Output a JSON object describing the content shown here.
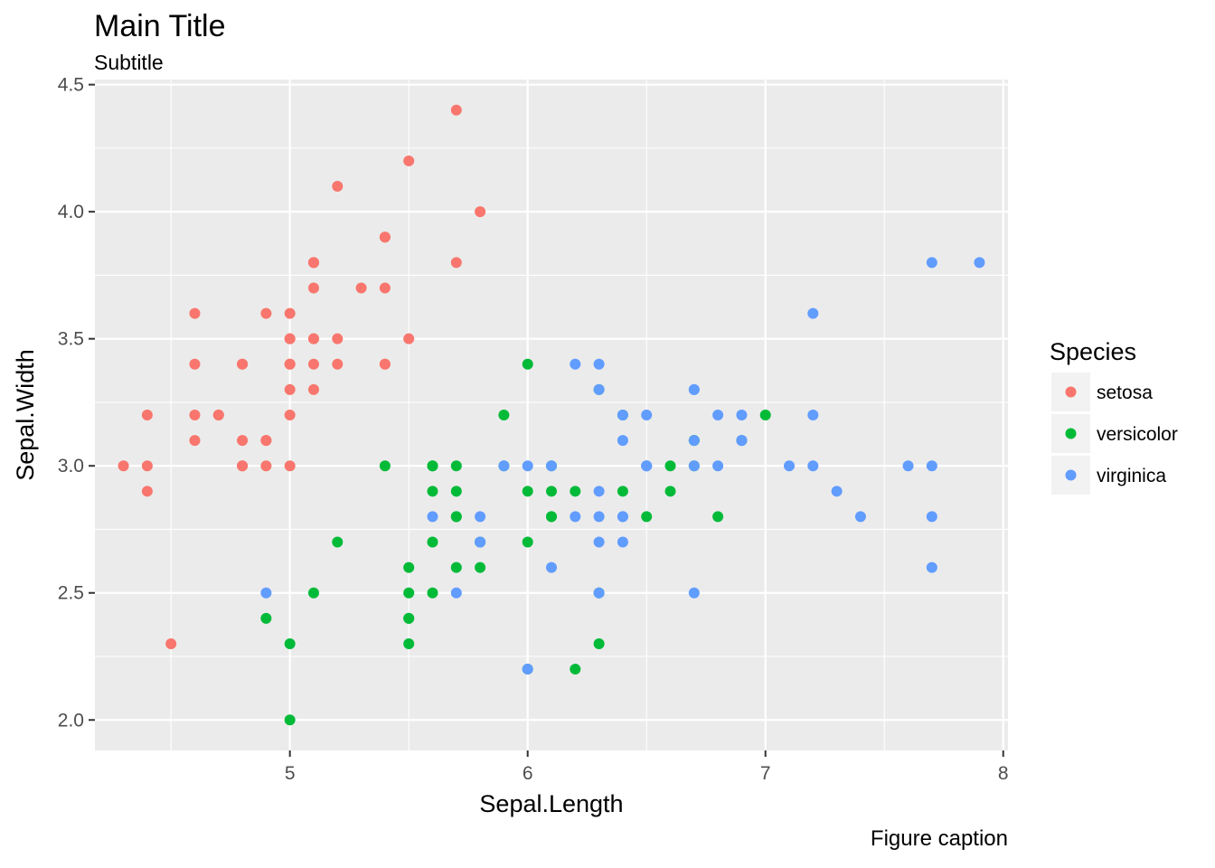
{
  "chart_data": {
    "type": "scatter",
    "title": "Main Title",
    "subtitle": "Subtitle",
    "caption": "Figure caption",
    "xlabel": "Sepal.Length",
    "ylabel": "Sepal.Width",
    "xlim": [
      4.18,
      8.02
    ],
    "ylim": [
      1.88,
      4.52
    ],
    "x_ticks": [
      5,
      6,
      7,
      8
    ],
    "y_ticks": [
      2.0,
      2.5,
      3.0,
      3.5,
      4.0,
      4.5
    ],
    "x_tick_labels": [
      "5",
      "6",
      "7",
      "8"
    ],
    "y_tick_labels": [
      "2.0",
      "2.5",
      "3.0",
      "3.5",
      "4.0",
      "4.5"
    ],
    "grid": true,
    "legend": {
      "title": "Species",
      "placement": "right"
    },
    "colors": {
      "panel": "#ebebeb",
      "grid": "#ffffff"
    },
    "series": [
      {
        "name": "setosa",
        "color": "#f8766d",
        "points": [
          [
            5.1,
            3.5
          ],
          [
            4.9,
            3.0
          ],
          [
            4.7,
            3.2
          ],
          [
            4.6,
            3.1
          ],
          [
            5.0,
            3.6
          ],
          [
            5.4,
            3.9
          ],
          [
            4.6,
            3.4
          ],
          [
            5.0,
            3.4
          ],
          [
            4.4,
            2.9
          ],
          [
            4.9,
            3.1
          ],
          [
            5.4,
            3.7
          ],
          [
            4.8,
            3.4
          ],
          [
            4.8,
            3.0
          ],
          [
            4.3,
            3.0
          ],
          [
            5.8,
            4.0
          ],
          [
            5.7,
            4.4
          ],
          [
            5.4,
            3.9
          ],
          [
            5.1,
            3.5
          ],
          [
            5.7,
            3.8
          ],
          [
            5.1,
            3.8
          ],
          [
            5.4,
            3.4
          ],
          [
            5.1,
            3.7
          ],
          [
            4.6,
            3.6
          ],
          [
            5.1,
            3.3
          ],
          [
            4.8,
            3.4
          ],
          [
            5.0,
            3.0
          ],
          [
            5.0,
            3.4
          ],
          [
            5.2,
            3.5
          ],
          [
            5.2,
            3.4
          ],
          [
            4.7,
            3.2
          ],
          [
            4.8,
            3.1
          ],
          [
            5.4,
            3.4
          ],
          [
            5.2,
            4.1
          ],
          [
            5.5,
            4.2
          ],
          [
            4.9,
            3.1
          ],
          [
            5.0,
            3.2
          ],
          [
            5.5,
            3.5
          ],
          [
            4.9,
            3.6
          ],
          [
            4.4,
            3.0
          ],
          [
            5.1,
            3.4
          ],
          [
            5.0,
            3.5
          ],
          [
            4.5,
            2.3
          ],
          [
            4.4,
            3.2
          ],
          [
            5.0,
            3.5
          ],
          [
            5.1,
            3.8
          ],
          [
            4.8,
            3.0
          ],
          [
            5.1,
            3.8
          ],
          [
            4.6,
            3.2
          ],
          [
            5.3,
            3.7
          ],
          [
            5.0,
            3.3
          ]
        ]
      },
      {
        "name": "versicolor",
        "color": "#00ba38",
        "points": [
          [
            7.0,
            3.2
          ],
          [
            6.4,
            3.2
          ],
          [
            6.9,
            3.1
          ],
          [
            5.5,
            2.3
          ],
          [
            6.5,
            2.8
          ],
          [
            5.7,
            2.8
          ],
          [
            6.3,
            3.3
          ],
          [
            4.9,
            2.4
          ],
          [
            6.6,
            2.9
          ],
          [
            5.2,
            2.7
          ],
          [
            5.0,
            2.0
          ],
          [
            5.9,
            3.0
          ],
          [
            6.0,
            2.2
          ],
          [
            6.1,
            2.9
          ],
          [
            5.6,
            2.9
          ],
          [
            6.7,
            3.1
          ],
          [
            5.6,
            3.0
          ],
          [
            5.8,
            2.7
          ],
          [
            6.2,
            2.2
          ],
          [
            5.6,
            2.5
          ],
          [
            5.9,
            3.2
          ],
          [
            6.1,
            2.8
          ],
          [
            6.3,
            2.5
          ],
          [
            6.1,
            2.8
          ],
          [
            6.4,
            2.9
          ],
          [
            6.6,
            3.0
          ],
          [
            6.8,
            2.8
          ],
          [
            6.7,
            3.0
          ],
          [
            6.0,
            2.9
          ],
          [
            5.7,
            2.6
          ],
          [
            5.5,
            2.4
          ],
          [
            5.5,
            2.4
          ],
          [
            5.8,
            2.7
          ],
          [
            6.0,
            2.7
          ],
          [
            5.4,
            3.0
          ],
          [
            6.0,
            3.4
          ],
          [
            6.7,
            3.1
          ],
          [
            6.3,
            2.3
          ],
          [
            5.6,
            3.0
          ],
          [
            5.5,
            2.5
          ],
          [
            5.5,
            2.6
          ],
          [
            6.1,
            3.0
          ],
          [
            5.8,
            2.6
          ],
          [
            5.0,
            2.3
          ],
          [
            5.6,
            2.7
          ],
          [
            5.7,
            3.0
          ],
          [
            5.7,
            2.9
          ],
          [
            6.2,
            2.9
          ],
          [
            5.1,
            2.5
          ],
          [
            5.7,
            2.8
          ]
        ]
      },
      {
        "name": "virginica",
        "color": "#619cff",
        "points": [
          [
            6.3,
            3.3
          ],
          [
            5.8,
            2.7
          ],
          [
            7.1,
            3.0
          ],
          [
            6.3,
            2.9
          ],
          [
            6.5,
            3.0
          ],
          [
            7.6,
            3.0
          ],
          [
            4.9,
            2.5
          ],
          [
            7.3,
            2.9
          ],
          [
            6.7,
            2.5
          ],
          [
            7.2,
            3.6
          ],
          [
            6.5,
            3.2
          ],
          [
            6.4,
            2.7
          ],
          [
            6.8,
            3.0
          ],
          [
            5.7,
            2.5
          ],
          [
            5.8,
            2.8
          ],
          [
            6.4,
            3.2
          ],
          [
            6.5,
            3.0
          ],
          [
            7.7,
            3.8
          ],
          [
            7.7,
            2.6
          ],
          [
            6.0,
            2.2
          ],
          [
            6.9,
            3.2
          ],
          [
            5.6,
            2.8
          ],
          [
            7.7,
            2.8
          ],
          [
            6.3,
            2.7
          ],
          [
            6.7,
            3.3
          ],
          [
            7.2,
            3.2
          ],
          [
            6.2,
            2.8
          ],
          [
            6.1,
            3.0
          ],
          [
            6.4,
            2.8
          ],
          [
            7.2,
            3.0
          ],
          [
            7.4,
            2.8
          ],
          [
            7.9,
            3.8
          ],
          [
            6.4,
            2.8
          ],
          [
            6.3,
            2.8
          ],
          [
            6.1,
            2.6
          ],
          [
            7.7,
            3.0
          ],
          [
            6.3,
            3.4
          ],
          [
            6.4,
            3.1
          ],
          [
            6.0,
            3.0
          ],
          [
            6.9,
            3.1
          ],
          [
            6.7,
            3.1
          ],
          [
            6.9,
            3.1
          ],
          [
            5.8,
            2.7
          ],
          [
            6.8,
            3.2
          ],
          [
            6.7,
            3.3
          ],
          [
            6.7,
            3.0
          ],
          [
            6.3,
            2.5
          ],
          [
            6.5,
            3.0
          ],
          [
            6.2,
            3.4
          ],
          [
            5.9,
            3.0
          ]
        ]
      }
    ]
  }
}
